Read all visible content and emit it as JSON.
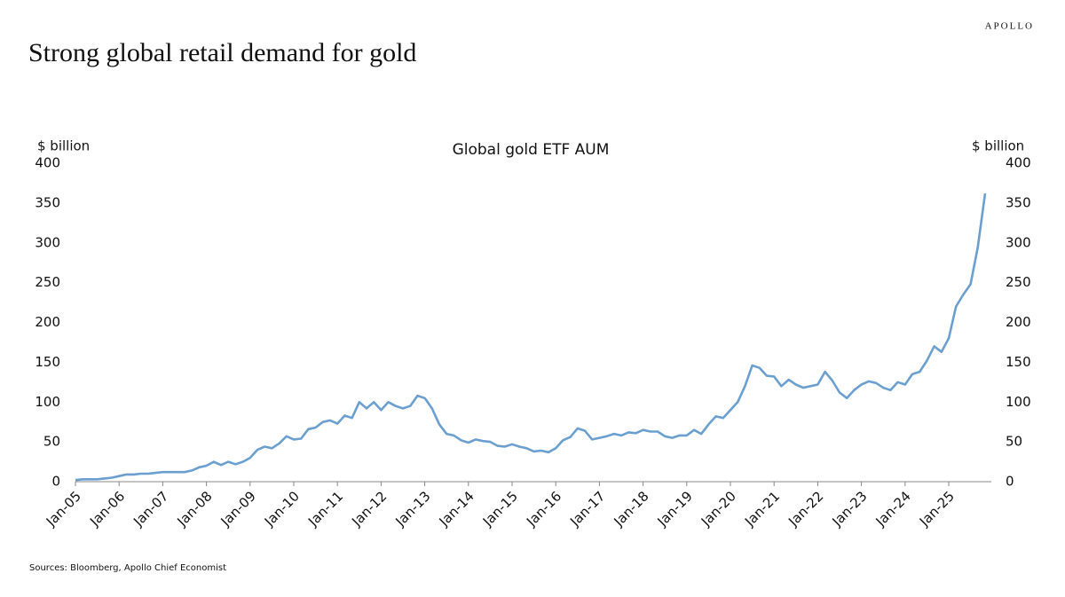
{
  "brand": "APOLLO",
  "headline": "Strong global retail demand for gold",
  "source": "Sources: Bloomberg, Apollo Chief Economist",
  "chart_data": {
    "type": "line",
    "title": "Global gold ETF AUM",
    "ylabel": "$ billion",
    "y2label": "$ billion",
    "ylim": [
      0,
      400
    ],
    "yticks": [
      0,
      50,
      100,
      150,
      200,
      250,
      300,
      350,
      400
    ],
    "y2lim": [
      0,
      400
    ],
    "y2ticks": [
      0,
      50,
      100,
      150,
      200,
      250,
      300,
      350,
      400
    ],
    "grid": false,
    "categories": [
      "Jan-05",
      null,
      null,
      null,
      null,
      null,
      "Jan-06",
      null,
      null,
      null,
      null,
      null,
      "Jan-07",
      null,
      null,
      null,
      null,
      null,
      "Jan-08",
      null,
      null,
      null,
      null,
      null,
      "Jan-09",
      null,
      null,
      null,
      null,
      null,
      "Jan-10",
      null,
      null,
      null,
      null,
      null,
      "Jan-11",
      null,
      null,
      null,
      null,
      null,
      "Jan-12",
      null,
      null,
      null,
      null,
      null,
      "Jan-13",
      null,
      null,
      null,
      null,
      null,
      "Jan-14",
      null,
      null,
      null,
      null,
      null,
      "Jan-15",
      null,
      null,
      null,
      null,
      null,
      "Jan-16",
      null,
      null,
      null,
      null,
      null,
      "Jan-17",
      null,
      null,
      null,
      null,
      null,
      "Jan-18",
      null,
      null,
      null,
      null,
      null,
      "Jan-19",
      null,
      null,
      null,
      null,
      null,
      "Jan-20",
      null,
      null,
      null,
      null,
      null,
      "Jan-21",
      null,
      null,
      null,
      null,
      null,
      "Jan-22",
      null,
      null,
      null,
      null,
      null,
      "Jan-23",
      null,
      null,
      null,
      null,
      null,
      "Jan-24",
      null,
      null,
      null,
      null,
      null,
      "Jan-25",
      null,
      null,
      null,
      null,
      null
    ],
    "series": [
      {
        "name": "Global gold ETF AUM",
        "color": "#6b9fd0",
        "values": [
          2,
          3,
          3,
          3,
          4,
          5,
          7,
          9,
          9,
          10,
          10,
          11,
          12,
          12,
          12,
          12,
          14,
          18,
          20,
          25,
          21,
          25,
          22,
          25,
          30,
          40,
          44,
          42,
          48,
          57,
          53,
          54,
          66,
          68,
          75,
          77,
          73,
          83,
          80,
          100,
          92,
          100,
          90,
          100,
          95,
          92,
          95,
          108,
          105,
          92,
          72,
          60,
          58,
          52,
          49,
          53,
          51,
          50,
          45,
          44,
          47,
          44,
          42,
          38,
          39,
          37,
          42,
          52,
          56,
          67,
          64,
          53,
          55,
          57,
          60,
          58,
          62,
          61,
          65,
          63,
          63,
          57,
          55,
          58,
          58,
          65,
          60,
          72,
          82,
          80,
          90,
          100,
          120,
          146,
          143,
          133,
          132,
          120,
          128,
          122,
          118,
          120,
          122,
          138,
          127,
          112,
          105,
          115,
          122,
          126,
          124,
          118,
          115,
          125,
          122,
          135,
          138,
          152,
          170,
          163,
          180,
          220,
          235,
          248,
          295,
          362
        ]
      }
    ]
  }
}
